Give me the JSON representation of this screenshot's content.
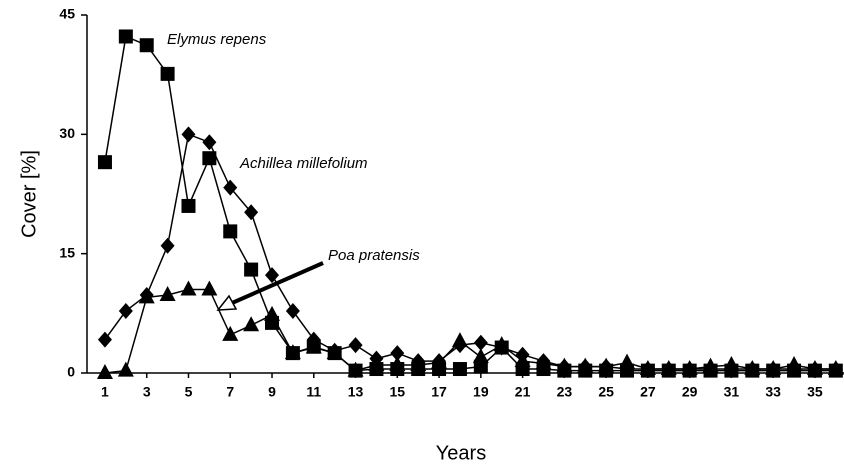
{
  "chart_data": {
    "type": "line",
    "x": [
      1,
      2,
      3,
      4,
      5,
      6,
      7,
      8,
      9,
      10,
      11,
      12,
      13,
      14,
      15,
      16,
      17,
      18,
      19,
      20,
      21,
      22,
      23,
      24,
      25,
      26,
      27,
      28,
      29,
      30,
      31,
      32,
      33,
      34,
      35,
      36
    ],
    "series": [
      {
        "name": "Elymus repens",
        "color": "#000000",
        "marker": "square",
        "values": [
          26.5,
          42.3,
          41.2,
          37.6,
          21,
          27,
          17.8,
          13,
          6.3,
          2.5,
          3.3,
          2.5,
          0.3,
          0.5,
          0.5,
          0.5,
          0.5,
          0.5,
          0.8,
          3.2,
          0.5,
          0.5,
          0.3,
          0.3,
          0.3,
          0.3,
          0.3,
          0.3,
          0.3,
          0.3,
          0.3,
          0.3,
          0.3,
          0.3,
          0.3,
          0.3
        ]
      },
      {
        "name": "Achillea millefolium",
        "color": "#000000",
        "marker": "diamond",
        "values": [
          4.2,
          7.8,
          9.8,
          16,
          30,
          29,
          23.3,
          20.2,
          12.3,
          7.8,
          4.2,
          2.8,
          3.5,
          1.8,
          2.5,
          1.5,
          1.5,
          3.5,
          3.8,
          3.2,
          2.3,
          1.5,
          0.8,
          0.8,
          0.8,
          0.5,
          0.5,
          0.5,
          0.5,
          0.5,
          0.5,
          0.5,
          0.5,
          0.5,
          0.5,
          0.5
        ]
      },
      {
        "name": "Poa pratensis",
        "color": "#000000",
        "marker": "triangle",
        "values": [
          0,
          0.3,
          9.5,
          9.8,
          10.5,
          10.5,
          4.8,
          6,
          7.3,
          2.5,
          3.2,
          2.5,
          0.3,
          1,
          1,
          1,
          1.3,
          4,
          2,
          3.5,
          1.5,
          1.2,
          0.8,
          0.8,
          0.8,
          1.3,
          0.5,
          0.5,
          0.5,
          0.8,
          1,
          0.5,
          0.5,
          1,
          0.5,
          0.5
        ]
      }
    ],
    "x_label": "Years",
    "y_label": "Cover [%]",
    "xlim": [
      0.14,
      36.2
    ],
    "xticks": [
      1,
      3,
      5,
      7,
      9,
      11,
      13,
      15,
      17,
      19,
      21,
      23,
      25,
      27,
      29,
      31,
      33,
      35
    ],
    "ylim": [
      0,
      45
    ],
    "yticks": [
      0,
      15,
      30,
      45
    ],
    "grid": false
  }
}
